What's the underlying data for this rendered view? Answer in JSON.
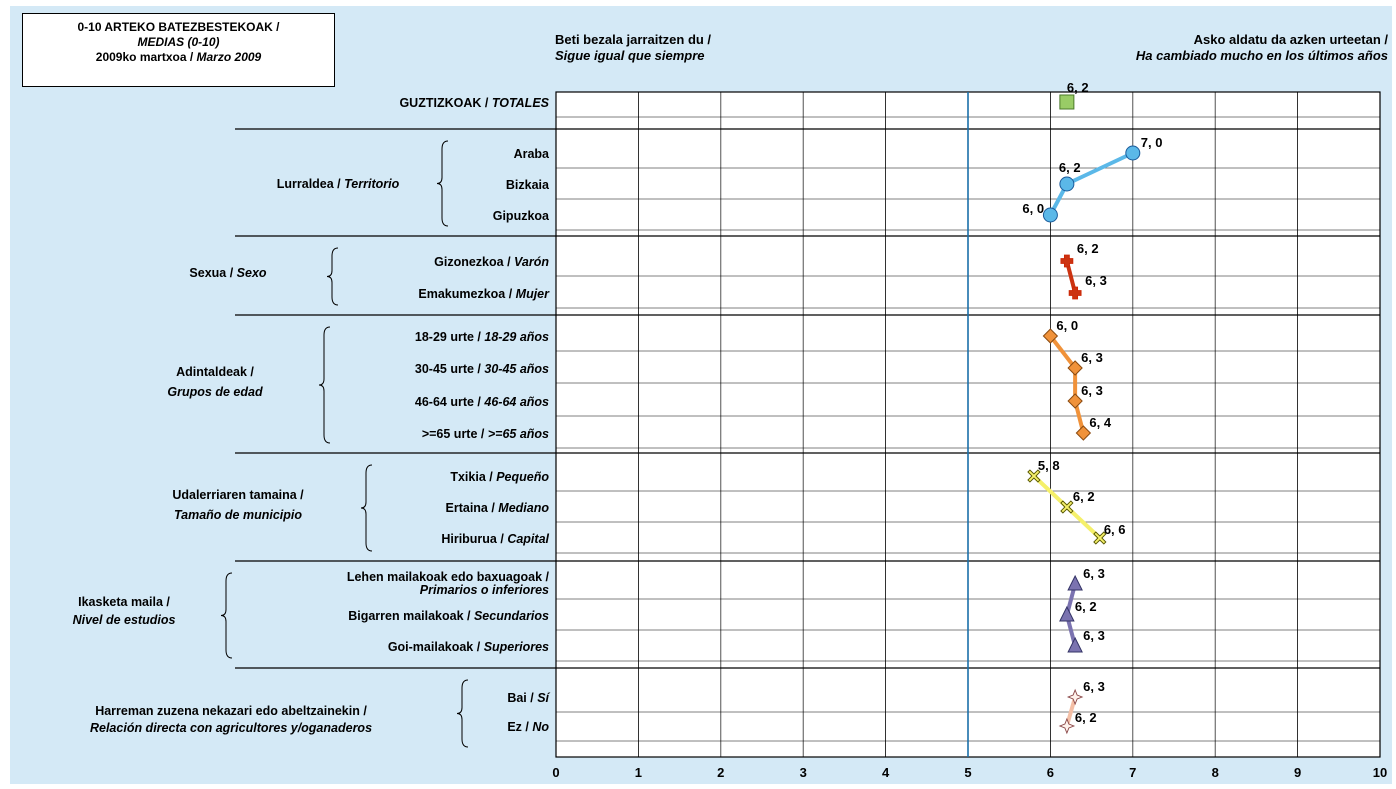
{
  "title": {
    "line1": "0-10 ARTEKO BATEZBESTEKOAK /",
    "line2": "MEDIAS (0-10)",
    "line3a": "2009ko martxoa / ",
    "line3b": "Marzo 2009"
  },
  "header_left": {
    "line1": "Beti bezala jarraitzen du /",
    "line2": "Sigue igual que siempre"
  },
  "header_right": {
    "line1": "Asko aldatu da azken urteetan /",
    "line2": "Ha cambiado mucho en los últimos años"
  },
  "chart_data": {
    "type": "line",
    "xlim": [
      0,
      10
    ],
    "xticks": [
      "0",
      "1",
      "2",
      "3",
      "4",
      "5",
      "6",
      "7",
      "8",
      "9",
      "10"
    ],
    "reference_line": 5,
    "groups": [
      {
        "label_eu": "",
        "label_es": "",
        "color": "#99cc66",
        "rows": [
          {
            "eu": "GUZTIZKOAK / ",
            "es": "TOTALES",
            "value": 6.2,
            "label": "6, 2"
          }
        ]
      },
      {
        "label_eu": "Lurraldea / ",
        "label_es": "Territorio",
        "color": "#5bb8e8",
        "rows": [
          {
            "eu": "Araba",
            "es": "",
            "value": 7.0,
            "label": "7, 0"
          },
          {
            "eu": "Bizkaia",
            "es": "",
            "value": 6.2,
            "label": "6, 2"
          },
          {
            "eu": "Gipuzkoa",
            "es": "",
            "value": 6.0,
            "label": "6, 0"
          }
        ]
      },
      {
        "label_eu": "Sexua / ",
        "label_es": "Sexo",
        "color": "#cc3311",
        "rows": [
          {
            "eu": "Gizonezkoa / ",
            "es": "Varón",
            "value": 6.2,
            "label": "6, 2"
          },
          {
            "eu": "Emakumezkoa / ",
            "es": "Mujer",
            "value": 6.3,
            "label": "6, 3"
          }
        ]
      },
      {
        "label_eu": "Adintaldeak /",
        "label_es": "Grupos de edad",
        "color": "#f0923a",
        "rows": [
          {
            "eu": "18-29 urte / ",
            "es": "18-29 años",
            "value": 6.0,
            "label": "6, 0"
          },
          {
            "eu": "30-45 urte / ",
            "es": "30-45 años",
            "value": 6.3,
            "label": "6, 3"
          },
          {
            "eu": "46-64 urte / ",
            "es": "46-64 años",
            "value": 6.3,
            "label": "6, 3"
          },
          {
            "eu": ">=65 urte / ",
            "es": ">=65 años",
            "value": 6.4,
            "label": "6, 4"
          }
        ]
      },
      {
        "label_eu": "Udalerriaren tamaina /",
        "label_es": "Tamaño de municipio",
        "color": "#f5f06a",
        "rows": [
          {
            "eu": "Txikia / ",
            "es": "Pequeño",
            "value": 5.8,
            "label": "5, 8"
          },
          {
            "eu": "Ertaina / ",
            "es": "Mediano",
            "value": 6.2,
            "label": "6, 2"
          },
          {
            "eu": "Hiriburua / ",
            "es": "Capital",
            "value": 6.6,
            "label": "6, 6"
          }
        ]
      },
      {
        "label_eu": "Ikasketa maila /",
        "label_es": "Nivel de estudios",
        "color": "#7b73b0",
        "rows": [
          {
            "eu": "Lehen mailakoak edo baxuagoak /",
            "es": "Primarios o inferiores",
            "value": 6.3,
            "label": "6, 3"
          },
          {
            "eu": "Bigarren mailakoak / ",
            "es": "Secundarios",
            "value": 6.2,
            "label": "6, 2"
          },
          {
            "eu": "Goi-mailakoak / ",
            "es": "Superiores",
            "value": 6.3,
            "label": "6, 3"
          }
        ]
      },
      {
        "label_eu": "Harreman zuzena nekazari edo abeltzainekin /",
        "label_es": "Relación directa con agricultores y/oganaderos",
        "color": "#f4bfa6",
        "rows": [
          {
            "eu": "Bai / ",
            "es": "Sí",
            "value": 6.3,
            "label": "6, 3"
          },
          {
            "eu": "Ez / ",
            "es": "No",
            "value": 6.2,
            "label": "6, 2"
          }
        ]
      }
    ]
  }
}
